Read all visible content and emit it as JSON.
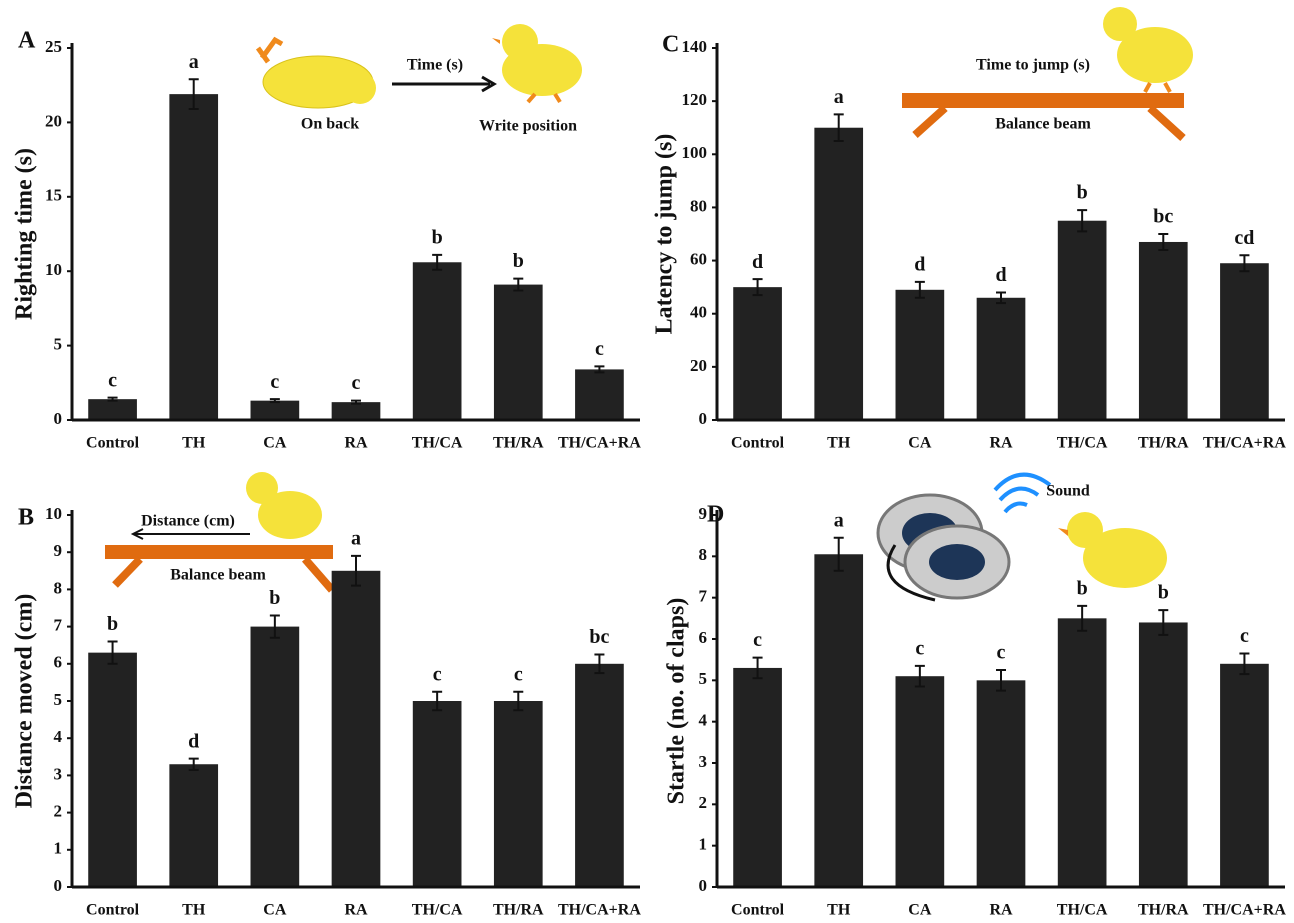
{
  "chart_data": [
    {
      "type": "bar",
      "panel": "A",
      "y_label": "Righting time (s)",
      "categories": [
        "Control",
        "TH",
        "CA",
        "RA",
        "TH/CA",
        "TH/RA",
        "TH/CA+RA"
      ],
      "values": [
        1.4,
        21.9,
        1.3,
        1.2,
        10.6,
        9.1,
        3.4
      ],
      "errors": [
        0.1,
        1.0,
        0.1,
        0.1,
        0.5,
        0.4,
        0.2
      ],
      "letters": [
        "c",
        "a",
        "c",
        "c",
        "b",
        "b",
        "c"
      ],
      "color": "#222222",
      "ylim": [
        0,
        25
      ],
      "yticks": [
        0,
        5,
        10,
        15,
        20,
        25
      ],
      "annotations": [
        "On back",
        "Time (s)",
        "Write position"
      ]
    },
    {
      "type": "bar",
      "panel": "B",
      "y_label": "Distance moved (cm)",
      "categories": [
        "Control",
        "TH",
        "CA",
        "RA",
        "TH/CA",
        "TH/RA",
        "TH/CA+RA"
      ],
      "values": [
        6.3,
        3.3,
        7.0,
        8.5,
        5.0,
        5.0,
        6.0
      ],
      "errors": [
        0.3,
        0.15,
        0.3,
        0.4,
        0.25,
        0.25,
        0.25
      ],
      "letters": [
        "b",
        "d",
        "b",
        "a",
        "c",
        "c",
        "bc"
      ],
      "color": "#222222",
      "ylim": [
        0,
        10
      ],
      "yticks": [
        0,
        1,
        2,
        3,
        4,
        5,
        6,
        7,
        8,
        9,
        10
      ],
      "annotations": [
        "Distance (cm)",
        "Balance beam"
      ]
    },
    {
      "type": "bar",
      "panel": "C",
      "y_label": "Latency to jump (s)",
      "categories": [
        "Control",
        "TH",
        "CA",
        "RA",
        "TH/CA",
        "TH/RA",
        "TH/CA+RA"
      ],
      "values": [
        50,
        110,
        49,
        46,
        75,
        67,
        59
      ],
      "errors": [
        3,
        5,
        3,
        2,
        4,
        3,
        3
      ],
      "letters": [
        "d",
        "a",
        "d",
        "d",
        "b",
        "bc",
        "cd"
      ],
      "color": "#222222",
      "ylim": [
        0,
        140
      ],
      "yticks": [
        0,
        20,
        40,
        60,
        80,
        100,
        120,
        140
      ],
      "annotations": [
        "Time to jump (s)",
        "Balance beam"
      ]
    },
    {
      "type": "bar",
      "panel": "D",
      "y_label": "Startle (no. of claps)",
      "categories": [
        "Control",
        "TH",
        "CA",
        "RA",
        "TH/CA",
        "TH/RA",
        "TH/CA+RA"
      ],
      "values": [
        5.3,
        8.05,
        5.1,
        5.0,
        6.5,
        6.4,
        5.4
      ],
      "errors": [
        0.25,
        0.4,
        0.25,
        0.25,
        0.3,
        0.3,
        0.25
      ],
      "letters": [
        "c",
        "a",
        "c",
        "c",
        "b",
        "b",
        "c"
      ],
      "color": "#222222",
      "ylim": [
        0,
        9
      ],
      "yticks": [
        0,
        1,
        2,
        3,
        4,
        5,
        6,
        7,
        8,
        9
      ],
      "annotations": [
        "Sound"
      ]
    }
  ]
}
